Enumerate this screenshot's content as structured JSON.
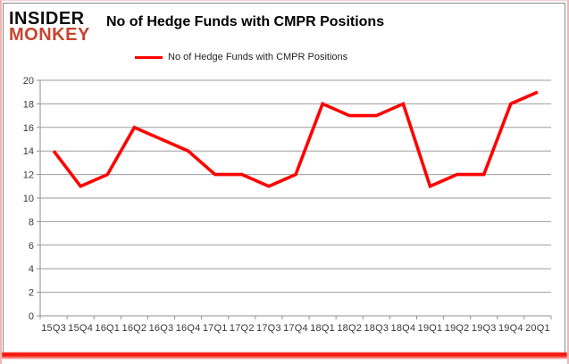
{
  "logo": {
    "line1": "INSIDER",
    "line2": "MONKEY",
    "color_line1": "#0d0d0d",
    "color_line2": "#c8432f"
  },
  "title": "No of Hedge Funds with CMPR Positions",
  "legend": {
    "label": "No of Hedge Funds with CMPR Positions",
    "marker": "red-line-swatch"
  },
  "frame": {
    "outer_border_color": "#f0b4b4",
    "outer_border_light": "#f7d0d0",
    "inner_border_color": "#8c8c8c",
    "bottom_bar_color": "#f5150c"
  },
  "chart_data": {
    "type": "line",
    "title": "No of Hedge Funds with CMPR Positions",
    "categories": [
      "15Q3",
      "15Q4",
      "16Q1",
      "16Q2",
      "16Q3",
      "16Q4",
      "17Q1",
      "17Q2",
      "17Q3",
      "17Q4",
      "18Q1",
      "18Q2",
      "18Q3",
      "18Q4",
      "19Q1",
      "19Q2",
      "19Q3",
      "19Q4",
      "20Q1"
    ],
    "series": [
      {
        "name": "No of Hedge Funds with CMPR Positions",
        "color": "#ff0000",
        "values": [
          14,
          11,
          12,
          16,
          15,
          14,
          12,
          12,
          11,
          12,
          18,
          17,
          17,
          18,
          11,
          12,
          12,
          18,
          19
        ]
      }
    ],
    "xlabel": "",
    "ylabel": "",
    "ylim": [
      0,
      20
    ],
    "ytick_step": 2,
    "grid": true,
    "gridline_color": "#9b9b9b",
    "axis_line_color": "#8f8f8f",
    "axis_text_color": "#3a3a3a",
    "legend_position": "top-center"
  }
}
